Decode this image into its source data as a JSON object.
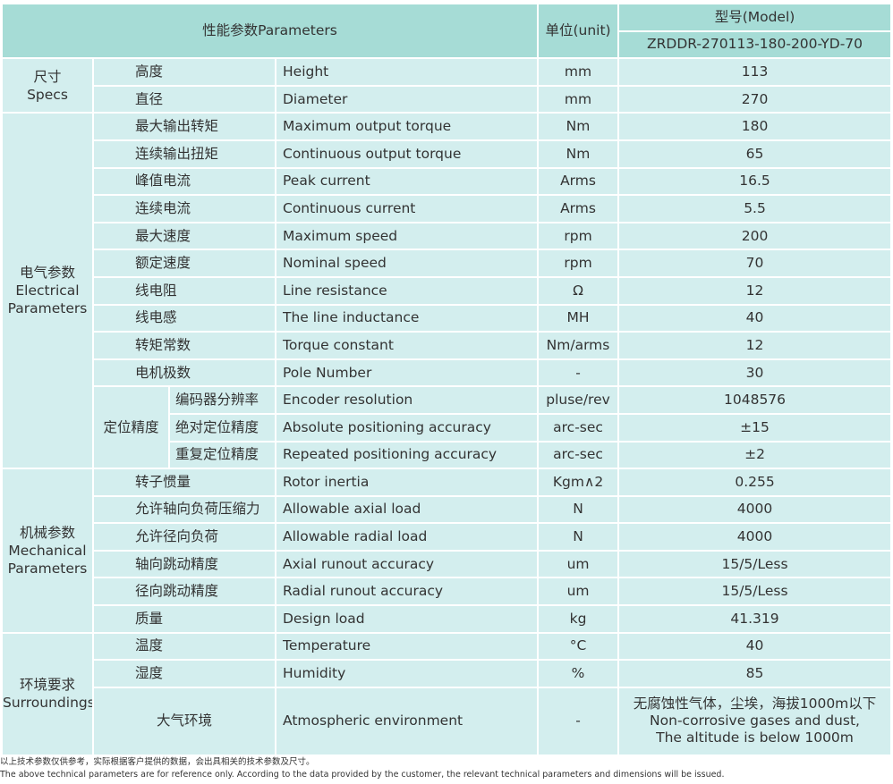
{
  "header": {
    "parameters": "性能参数Parameters",
    "unit": "单位(unit)",
    "model_label": "型号(Model)",
    "model": "ZRDDR-270113-180-200-YD-70"
  },
  "groups": [
    {
      "label_cn": "尺寸",
      "label_en": "Specs",
      "rows": [
        {
          "cn": "高度",
          "en": "Height",
          "unit": "mm",
          "value": 113
        },
        {
          "cn": "直径",
          "en": "Diameter",
          "unit": "mm",
          "value": 270
        }
      ]
    },
    {
      "label_cn": "电气参数",
      "label_en": "Electrical Parameters",
      "rows": [
        {
          "cn": "最大输出转矩",
          "en": "Maximum output torque",
          "unit": "Nm",
          "value": 180
        },
        {
          "cn": "连续输出扭矩",
          "en": "Continuous output torque",
          "unit": "Nm",
          "value": 65
        },
        {
          "cn": "峰值电流",
          "en": "Peak current",
          "unit": "Arms",
          "value": 16.5
        },
        {
          "cn": "连续电流",
          "en": "Continuous current",
          "unit": "Arms",
          "value": 5.5
        },
        {
          "cn": "最大速度",
          "en": "Maximum speed",
          "unit": "rpm",
          "value": 200
        },
        {
          "cn": "额定速度",
          "en": "Nominal speed",
          "unit": "rpm",
          "value": 70
        },
        {
          "cn": "线电阻",
          "en": "Line resistance",
          "unit": "Ω",
          "value": 12
        },
        {
          "cn": "线电感",
          "en": "The line inductance",
          "unit": "MH",
          "value": 40
        },
        {
          "cn": "转矩常数",
          "en": "Torque constant",
          "unit": "Nm/arms",
          "value": 12
        },
        {
          "cn": "电机极数",
          "en": "Pole Number",
          "unit": "-",
          "value": 30
        }
      ],
      "subgroup": {
        "label": "定位精度",
        "rows": [
          {
            "cn": "编码器分辨率",
            "en": "Encoder resolution",
            "unit": "pluse/rev",
            "value": 1048576
          },
          {
            "cn": "绝对定位精度",
            "en": "Absolute positioning accuracy",
            "unit": "arc-sec",
            "value": "±15"
          },
          {
            "cn": "重复定位精度",
            "en": "Repeated positioning accuracy",
            "unit": "arc-sec",
            "value": "±2"
          }
        ]
      }
    },
    {
      "label_cn": "机械参数",
      "label_en": "Mechanical Parameters",
      "rows": [
        {
          "cn": "转子惯量",
          "en": "Rotor inertia",
          "unit": "Kgm∧2",
          "value": 0.255
        },
        {
          "cn": "允许轴向负荷压缩力",
          "en": "Allowable axial load",
          "unit": "N",
          "value": 4000
        },
        {
          "cn": "允许径向负荷",
          "en": "Allowable radial load",
          "unit": "N",
          "value": 4000
        },
        {
          "cn": "轴向跳动精度",
          "en": "Axial runout accuracy",
          "unit": "um",
          "value": "15/5/Less"
        },
        {
          "cn": "径向跳动精度",
          "en": "Radial runout accuracy",
          "unit": "um",
          "value": "15/5/Less"
        },
        {
          "cn": "质量",
          "en": "Design load",
          "unit": "kg",
          "value": 41.319
        }
      ]
    },
    {
      "label_cn": "环境要求",
      "label_en": "Surroundings",
      "rows": [
        {
          "cn": "温度",
          "en": "Temperature",
          "unit": "°C",
          "value": 40
        },
        {
          "cn": "湿度",
          "en": "Humidity",
          "unit": "%",
          "value": 85
        },
        {
          "cn": "大气环境",
          "en": "Atmospheric environment",
          "unit": "-",
          "value": [
            "无腐蚀性气体，尘埃，海拔1000m以下",
            "Non-corrosive gases and dust,",
            "The altitude is below 1000m"
          ]
        }
      ]
    }
  ],
  "footnotes": [
    "以上技术参数仅供参考，实际根据客户提供的数据，会出具相关的技术参数及尺寸。",
    "The above technical parameters are for reference only. According to the data provided by the customer, the relevant technical parameters and dimensions will be issued."
  ]
}
